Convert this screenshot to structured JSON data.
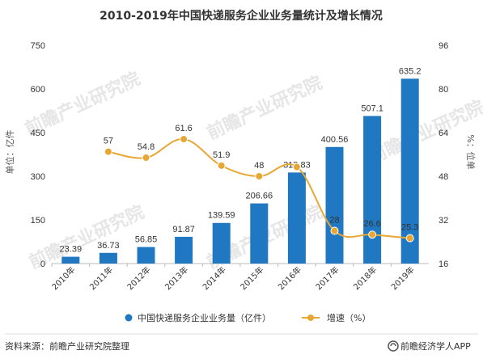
{
  "title": "2010-2019年中国快递服务企业业务量统计及增长情况",
  "chart_data": {
    "type": "bar",
    "categories": [
      "2010年",
      "2011年",
      "2012年",
      "2013年",
      "2014年",
      "2015年",
      "2016年",
      "2017年",
      "2018年",
      "2019年"
    ],
    "series": [
      {
        "name": "中国快递服务企业业务量（亿件）",
        "type": "bar",
        "axis": "left",
        "values": [
          23.39,
          36.73,
          56.85,
          91.87,
          139.59,
          206.66,
          312.83,
          400.56,
          507.1,
          635.2
        ],
        "labels": [
          "23.39",
          "36.73",
          "56.85",
          "91.87",
          "139.59",
          "206.66",
          "312.83",
          "400.56",
          "507.1",
          "635.2"
        ],
        "color": "#1f78c1"
      },
      {
        "name": "增速（%）",
        "type": "line",
        "axis": "right",
        "values": [
          null,
          57,
          54.8,
          61.6,
          51.9,
          48,
          51.4,
          28,
          26.6,
          25.3
        ],
        "labels": [
          "",
          "57",
          "54.8",
          "61.6",
          "51.9",
          "48",
          "",
          "28",
          "26.6",
          "25.3"
        ],
        "color": "#e8a735"
      }
    ],
    "ylabel_left": "单位：亿件",
    "ylabel_right": "%：位单",
    "ylim_left": [
      0,
      750
    ],
    "yticks_left": [
      0,
      150,
      300,
      450,
      600,
      750
    ],
    "ylim_right": [
      16,
      96
    ],
    "yticks_right": [
      16,
      32,
      48,
      64,
      80,
      96
    ],
    "grid": false,
    "legend_position": "bottom"
  },
  "footer": {
    "source": "资料来源：前瞻产业研究院整理",
    "brand": "前瞻经济学人APP"
  },
  "watermark": {
    "text": "前瞻产业研究院"
  },
  "icons": {
    "brand": "qianzhan-logo-icon"
  }
}
